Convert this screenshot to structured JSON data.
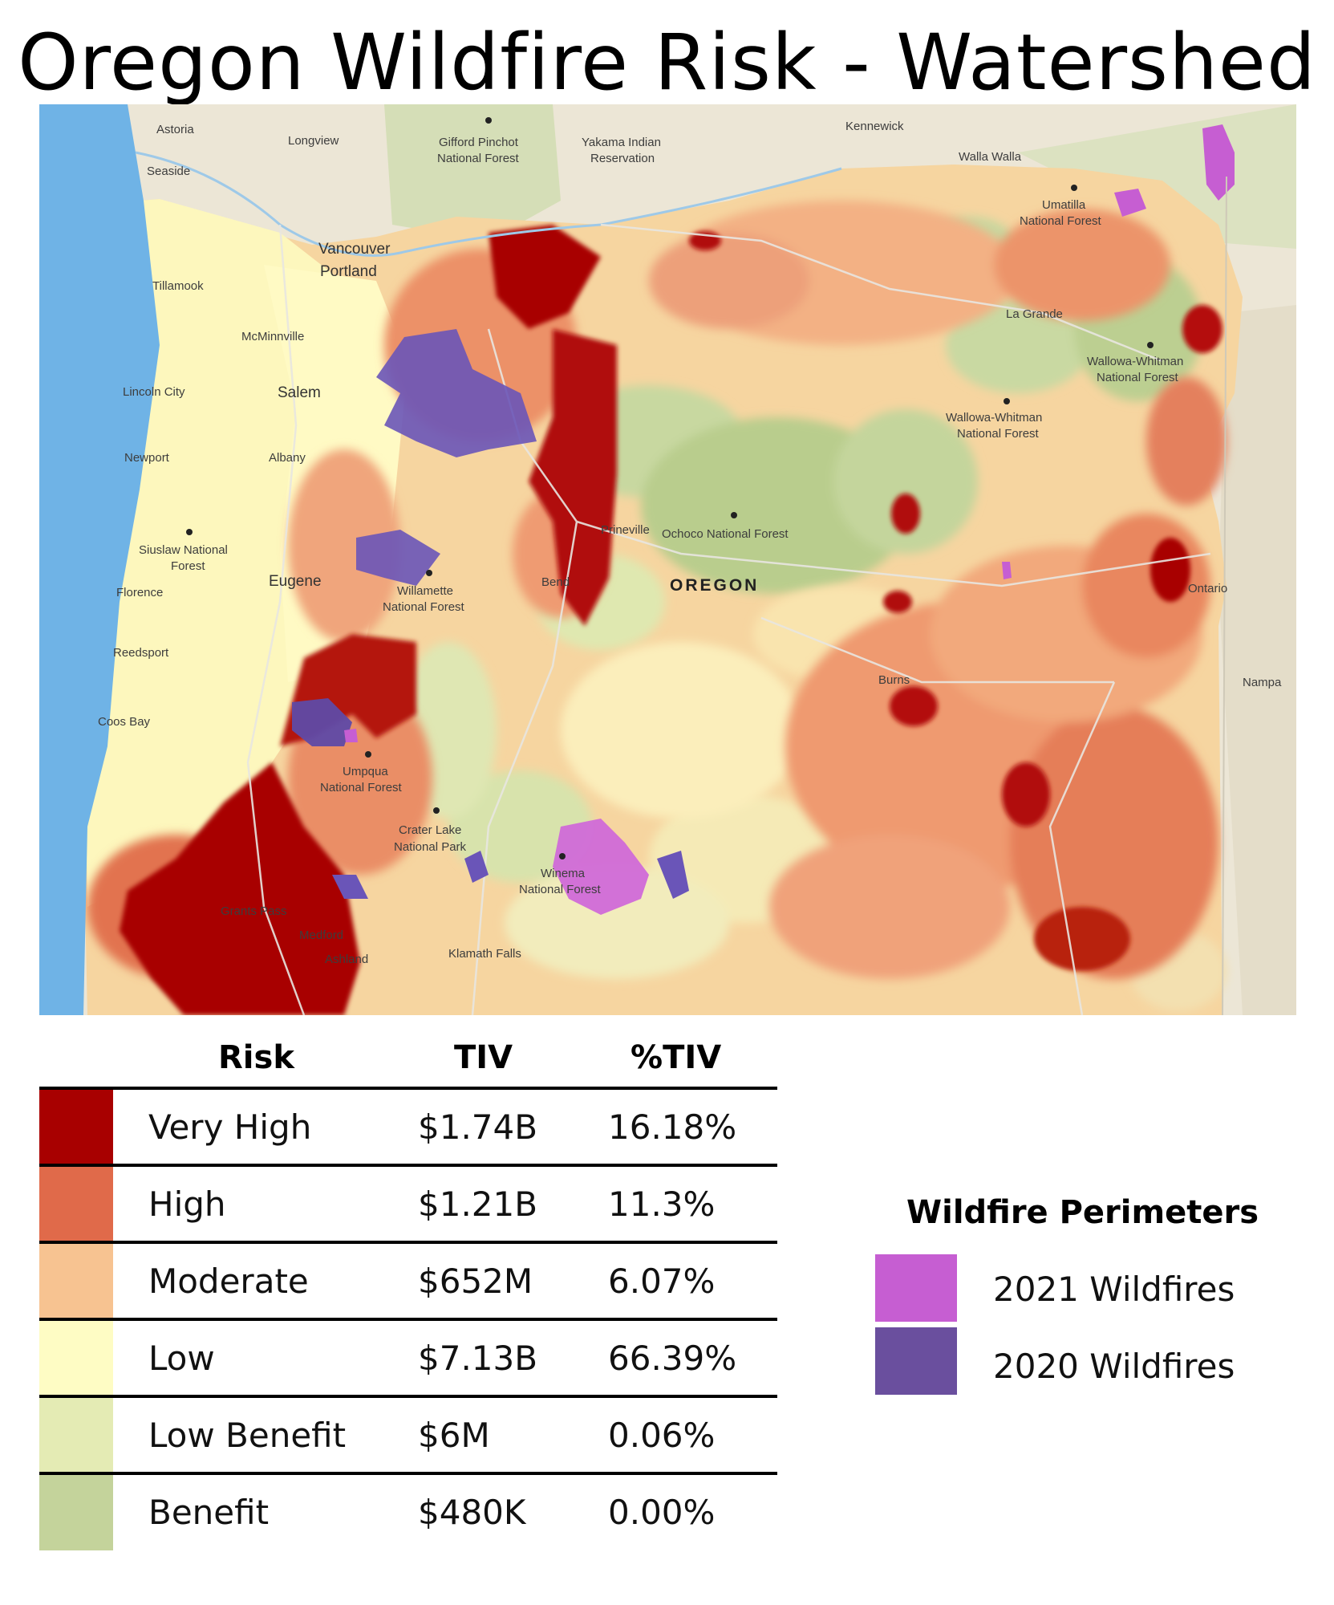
{
  "title": "Oregon Wildfire Risk - Watershed",
  "map": {
    "state_label": "OREGON",
    "places": {
      "astoria": "Astoria",
      "seaside": "Seaside",
      "longview": "Longview",
      "gifford": "Gifford Pinchot",
      "gifford2": "National Forest",
      "yakama": "Yakama Indian",
      "yakama2": "Reservation",
      "kennewick": "Kennewick",
      "walla": "Walla Walla",
      "umatilla": "Umatilla",
      "umatilla2": "National Forest",
      "vancouver": "Vancouver",
      "portland": "Portland",
      "tillamook": "Tillamook",
      "mcminnville": "McMinnville",
      "lagrande": "La Grande",
      "wallowa1": "Wallowa-Whitman",
      "wallowa1b": "National Forest",
      "wallowa2": "Wallowa-Whitman",
      "wallowa2b": "National Forest",
      "lincoln": "Lincoln City",
      "salem": "Salem",
      "newport": "Newport",
      "albany": "Albany",
      "siuslaw": "Siuslaw National",
      "siuslaw2": "Forest",
      "prineville": "Prineville",
      "ochoco": "Ochoco National Forest",
      "florence": "Florence",
      "eugene": "Eugene",
      "willamette": "Willamette",
      "willamette2": "National Forest",
      "bend": "Bend",
      "ontario": "Ontario",
      "reedsport": "Reedsport",
      "burns": "Burns",
      "nampa": "Nampa",
      "coosbay": "Coos Bay",
      "umpqua": "Umpqua",
      "umpqua2": "National Forest",
      "crater": "Crater Lake",
      "crater2": "National Park",
      "winema": "Winema",
      "winema2": "National Forest",
      "grantspass": "Grants Pass",
      "medford": "Medford",
      "ashland": "Ashland",
      "klamath": "Klamath Falls"
    }
  },
  "table": {
    "headers": {
      "risk": "Risk",
      "tiv": "TIV",
      "pct": "%TIV"
    },
    "rows": [
      {
        "risk": "Very High",
        "tiv": "$1.74B",
        "pct": "16.18%",
        "color": "#a80000"
      },
      {
        "risk": "High",
        "tiv": "$1.21B",
        "pct": "11.3%",
        "color": "#e06a4a"
      },
      {
        "risk": "Moderate",
        "tiv": "$652M",
        "pct": "6.07%",
        "color": "#f7c391"
      },
      {
        "risk": "Low",
        "tiv": "$7.13B",
        "pct": "66.39%",
        "color": "#fefcc4"
      },
      {
        "risk": "Low Benefit",
        "tiv": "$6M",
        "pct": "0.06%",
        "color": "#e4ebb4"
      },
      {
        "risk": "Benefit",
        "tiv": "$480K",
        "pct": "0.00%",
        "color": "#c4d39b"
      }
    ]
  },
  "legend": {
    "title": "Wildfire Perimeters",
    "items": [
      {
        "label": "2021 Wildfires",
        "color": "#c65ed2"
      },
      {
        "label": "2020 Wildfires",
        "color": "#6a4f9e"
      }
    ]
  }
}
